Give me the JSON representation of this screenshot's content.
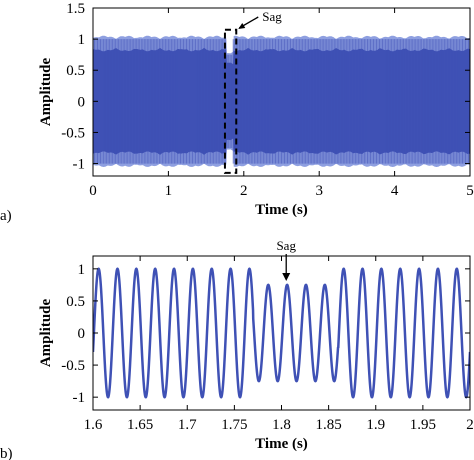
{
  "colors": {
    "signal": "#3f51b5",
    "signal_light": "#8e9fe0",
    "axis": "#000000"
  },
  "chart_data": [
    {
      "type": "line",
      "panel_label": "a)",
      "xlabel": "Time (s)",
      "ylabel": "Amplitude",
      "xlim": [
        0,
        5
      ],
      "ylim": [
        -1.2,
        1.5
      ],
      "xticks": [
        "0",
        "1",
        "2",
        "3",
        "4",
        "5"
      ],
      "yticks": [
        "1.5",
        "1",
        "0.5",
        "0",
        "-0.5",
        "-1"
      ],
      "signal": {
        "frequency_hz": 50,
        "amplitude": 1.0,
        "sag_start_s": 1.77,
        "sag_end_s": 1.86,
        "sag_amplitude": 0.75
      },
      "annotation": {
        "text": "Sag",
        "box_x": [
          1.75,
          1.9
        ],
        "box_y": [
          -1.15,
          1.15
        ]
      }
    },
    {
      "type": "line",
      "panel_label": "b)",
      "xlabel": "Time (s)",
      "ylabel": "Amplitude",
      "xlim": [
        1.6,
        2.0
      ],
      "ylim": [
        -1.2,
        1.2
      ],
      "xticks": [
        "1.6",
        "1.65",
        "1.7",
        "1.75",
        "1.8",
        "1.85",
        "1.9",
        "1.95",
        "2"
      ],
      "yticks": [
        "1",
        "0.5",
        "0",
        "-0.5",
        "-1"
      ],
      "signal": {
        "frequency_hz": 50,
        "amplitude": 1.0,
        "sag_start_s": 1.77,
        "sag_end_s": 1.86,
        "sag_amplitude": 0.75
      },
      "annotation": {
        "text": "Sag",
        "target_x": 1.805,
        "target_y": 0.78
      }
    }
  ]
}
